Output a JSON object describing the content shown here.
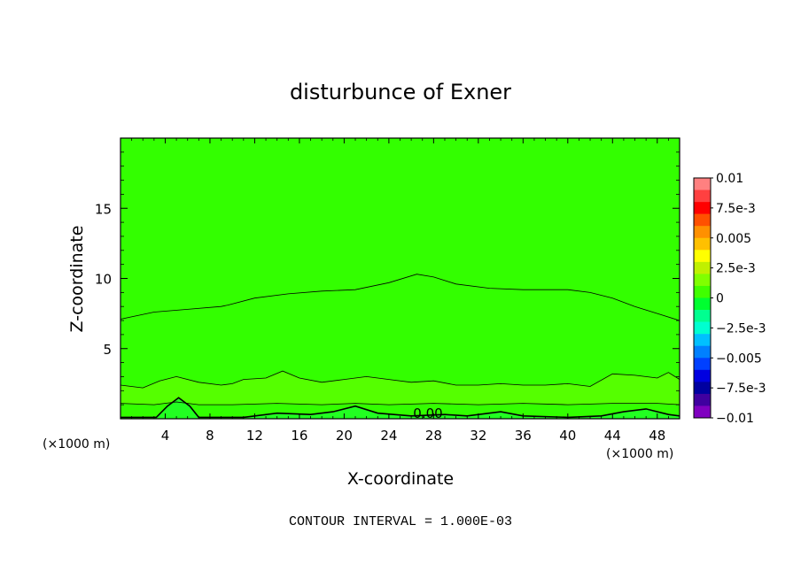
{
  "chart_data": {
    "type": "heatmap",
    "title": "disturbunce of Exner",
    "xlabel": "X-coordinate",
    "ylabel": "Z-coordinate",
    "x_unit_left": "(×1000 m)",
    "x_unit_right": "(×1000 m)",
    "xlim": [
      0,
      50
    ],
    "ylim": [
      0,
      20
    ],
    "x_ticks": [
      4,
      8,
      12,
      16,
      20,
      24,
      28,
      32,
      36,
      40,
      44,
      48
    ],
    "x_tick_labels": [
      "4",
      "8",
      "12",
      "16",
      "20",
      "24",
      "28",
      "32",
      "36",
      "40",
      "44",
      "48"
    ],
    "y_ticks": [
      5,
      10,
      15
    ],
    "y_tick_labels": [
      "5",
      "10",
      "15"
    ],
    "contour_label": "0.00",
    "footnote": "CONTOUR INTERVAL = 1.000E-03",
    "colorbar": {
      "labels": [
        "0.01",
        "7.5e-3",
        "0.005",
        "2.5e-3",
        "0",
        "−2.5e-3",
        "−0.005",
        "−7.5e-3",
        "−0.01"
      ],
      "colors": [
        "#ff8080",
        "#ff4040",
        "#ff0000",
        "#ff5000",
        "#ff9000",
        "#ffc000",
        "#ffff00",
        "#c0f000",
        "#80ff00",
        "#40ff00",
        "#00ff30",
        "#00ff90",
        "#00ffd0",
        "#00c0ff",
        "#0080ff",
        "#0040ff",
        "#0000e0",
        "#0000a0",
        "#4000a0",
        "#8000c0"
      ]
    },
    "contour_bands": [
      {
        "level": "0 to 1.0e-3",
        "color": "#33ff00",
        "upper_boundary": [
          [
            0,
            7.1
          ],
          [
            3,
            7.6
          ],
          [
            6,
            7.8
          ],
          [
            9,
            8.0
          ],
          [
            9.6,
            8.1
          ],
          [
            12,
            8.6
          ],
          [
            15,
            8.9
          ],
          [
            18,
            9.1
          ],
          [
            21,
            9.2
          ],
          [
            24,
            9.7
          ],
          [
            26.5,
            10.3
          ],
          [
            28,
            10.1
          ],
          [
            30,
            9.6
          ],
          [
            33,
            9.3
          ],
          [
            36,
            9.2
          ],
          [
            38,
            9.2
          ],
          [
            40,
            9.2
          ],
          [
            42,
            9.0
          ],
          [
            44,
            8.6
          ],
          [
            46,
            8.0
          ],
          [
            48,
            7.5
          ],
          [
            50,
            7.0
          ]
        ]
      },
      {
        "level": "-1.0e-3 to 0",
        "color": "#55ff00",
        "upper_boundary": [
          [
            0,
            2.4
          ],
          [
            2,
            2.2
          ],
          [
            3.5,
            2.7
          ],
          [
            5,
            3.0
          ],
          [
            7,
            2.6
          ],
          [
            9,
            2.4
          ],
          [
            10,
            2.5
          ],
          [
            11,
            2.8
          ],
          [
            13,
            2.9
          ],
          [
            14.5,
            3.4
          ],
          [
            16,
            2.9
          ],
          [
            18,
            2.6
          ],
          [
            20,
            2.8
          ],
          [
            22,
            3.0
          ],
          [
            24,
            2.8
          ],
          [
            26,
            2.6
          ],
          [
            28,
            2.7
          ],
          [
            30,
            2.4
          ],
          [
            32,
            2.4
          ],
          [
            34,
            2.5
          ],
          [
            36,
            2.4
          ],
          [
            38,
            2.4
          ],
          [
            40,
            2.5
          ],
          [
            42,
            2.3
          ],
          [
            44,
            3.2
          ],
          [
            46,
            3.1
          ],
          [
            48,
            2.9
          ],
          [
            49,
            3.3
          ],
          [
            50,
            2.8
          ]
        ]
      },
      {
        "level": "-2.0e-3 to -1.0e-3",
        "color": "#33ff00",
        "upper_boundary": [
          [
            0,
            1.1
          ],
          [
            3,
            1.0
          ],
          [
            5,
            1.2
          ],
          [
            7,
            1.0
          ],
          [
            10,
            1.0
          ],
          [
            14,
            1.1
          ],
          [
            18,
            1.0
          ],
          [
            21,
            1.1
          ],
          [
            24,
            1.0
          ],
          [
            28,
            1.1
          ],
          [
            32,
            1.0
          ],
          [
            36,
            1.1
          ],
          [
            40,
            1.0
          ],
          [
            44,
            1.1
          ],
          [
            48,
            1.1
          ],
          [
            50,
            1.0
          ]
        ]
      },
      {
        "level": "-3.0e-3 to -2.0e-3",
        "color": "#22ff22",
        "upper_boundary": [
          [
            0,
            0.1
          ],
          [
            3.2,
            0.1
          ],
          [
            4.2,
            0.9
          ],
          [
            5.2,
            1.5
          ],
          [
            6.2,
            0.9
          ],
          [
            7,
            0.1
          ],
          [
            11,
            0.1
          ],
          [
            14,
            0.4
          ],
          [
            17,
            0.3
          ],
          [
            19,
            0.5
          ],
          [
            21,
            0.9
          ],
          [
            23,
            0.4
          ],
          [
            26,
            0.2
          ],
          [
            29,
            0.3
          ],
          [
            31,
            0.2
          ],
          [
            34,
            0.5
          ],
          [
            36,
            0.2
          ],
          [
            40,
            0.1
          ],
          [
            43,
            0.2
          ],
          [
            45,
            0.5
          ],
          [
            47,
            0.7
          ],
          [
            49,
            0.3
          ],
          [
            50,
            0.2
          ]
        ]
      }
    ]
  }
}
